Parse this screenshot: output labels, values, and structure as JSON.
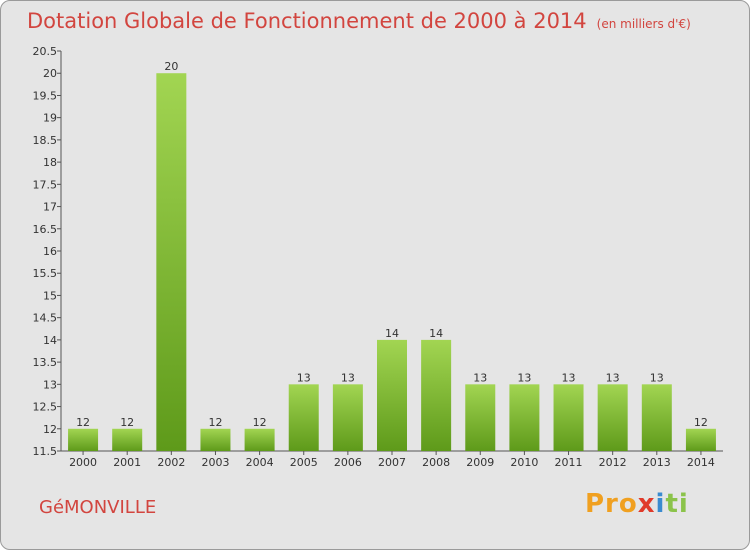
{
  "header": {
    "title": "Dotation Globale de Fonctionnement de 2000 à 2014",
    "subtitle": "(en milliers d'€)"
  },
  "commune": "GéMONVILLE",
  "logo": {
    "text": "Proxiti",
    "parts": [
      "Pro",
      "x",
      "i",
      "ti"
    ]
  },
  "colors": {
    "title": "#d2453f",
    "bar_light": "#9fd24f",
    "bar_dark": "#5f9c1c",
    "background": "#e5e5e5"
  },
  "chart_data": {
    "type": "bar",
    "title": "Dotation Globale de Fonctionnement de 2000 à 2014",
    "unit": "(en milliers d'€)",
    "xlabel": "",
    "ylabel": "",
    "categories": [
      "2000",
      "2001",
      "2002",
      "2003",
      "2004",
      "2005",
      "2006",
      "2007",
      "2008",
      "2009",
      "2010",
      "2011",
      "2012",
      "2013",
      "2014"
    ],
    "values": [
      12,
      12,
      20,
      12,
      12,
      13,
      13,
      14,
      14,
      13,
      13,
      13,
      13,
      13,
      12
    ],
    "labels": [
      "12",
      "12",
      "20",
      "12",
      "12",
      "13",
      "13",
      "14",
      "14",
      "13",
      "13",
      "13",
      "13",
      "13",
      "12"
    ],
    "ylim": [
      11.5,
      20.5
    ],
    "yticks": [
      "11.5",
      "12",
      "12.5",
      "13",
      "13.5",
      "14",
      "14.5",
      "15",
      "15.5",
      "16",
      "16.5",
      "17",
      "17.5",
      "18",
      "18.5",
      "19",
      "19.5",
      "20",
      "20.5"
    ],
    "grid": false
  }
}
